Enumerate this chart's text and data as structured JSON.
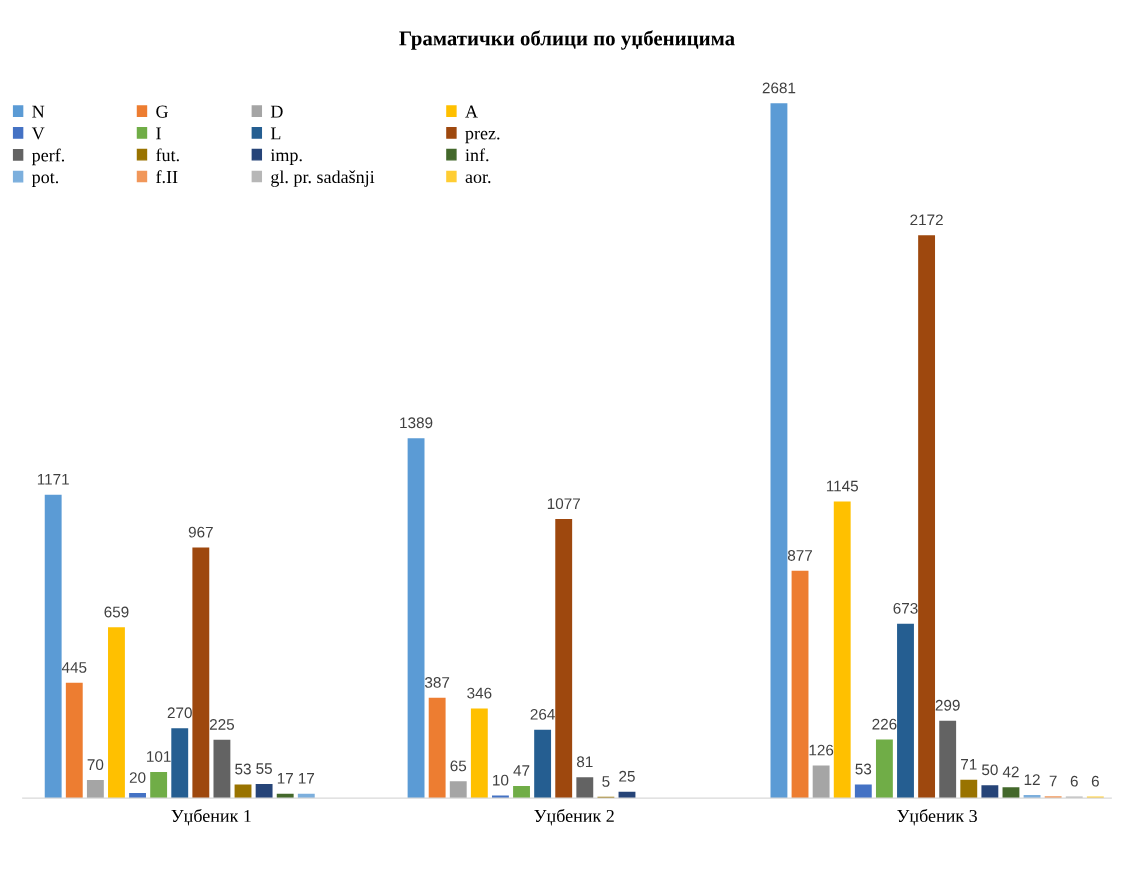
{
  "chart_data": {
    "type": "bar",
    "title": "Граматички облици по уџбеницима",
    "categories": [
      "Уџбеник 1",
      "Уџбеник 2",
      "Уџбеник 3"
    ],
    "series": [
      {
        "name": "N",
        "color": "#5b9bd5",
        "values": [
          1171,
          1389,
          2681
        ]
      },
      {
        "name": "G",
        "color": "#ed7d31",
        "values": [
          445,
          387,
          877
        ]
      },
      {
        "name": "D",
        "color": "#a5a5a5",
        "values": [
          70,
          65,
          126
        ]
      },
      {
        "name": "A",
        "color": "#ffc000",
        "values": [
          659,
          346,
          1145
        ]
      },
      {
        "name": "V",
        "color": "#4472c4",
        "values": [
          20,
          10,
          53
        ]
      },
      {
        "name": "I",
        "color": "#70ad47",
        "values": [
          101,
          47,
          226
        ]
      },
      {
        "name": "L",
        "color": "#255e91",
        "values": [
          270,
          264,
          673
        ]
      },
      {
        "name": "prez.",
        "color": "#9e480e",
        "values": [
          967,
          1077,
          2172
        ]
      },
      {
        "name": "perf.",
        "color": "#636363",
        "values": [
          225,
          81,
          299
        ]
      },
      {
        "name": "fut.",
        "color": "#997300",
        "values": [
          53,
          5,
          71
        ]
      },
      {
        "name": "imp.",
        "color": "#264478",
        "values": [
          55,
          25,
          50
        ]
      },
      {
        "name": "inf.",
        "color": "#43682b",
        "values": [
          17,
          null,
          42
        ]
      },
      {
        "name": "pot.",
        "color": "#7cafdd",
        "values": [
          17,
          null,
          12
        ]
      },
      {
        "name": "f.II",
        "color": "#f1975a",
        "values": [
          null,
          null,
          7
        ]
      },
      {
        "name": "gl. pr. sadašnji",
        "color": "#b7b7b7",
        "values": [
          null,
          null,
          6
        ]
      },
      {
        "name": "aor.",
        "color": "#ffcd33",
        "values": [
          null,
          null,
          6
        ]
      }
    ],
    "data_labels": true,
    "tick_labels": "x",
    "grid": false,
    "legend": "top left"
  }
}
